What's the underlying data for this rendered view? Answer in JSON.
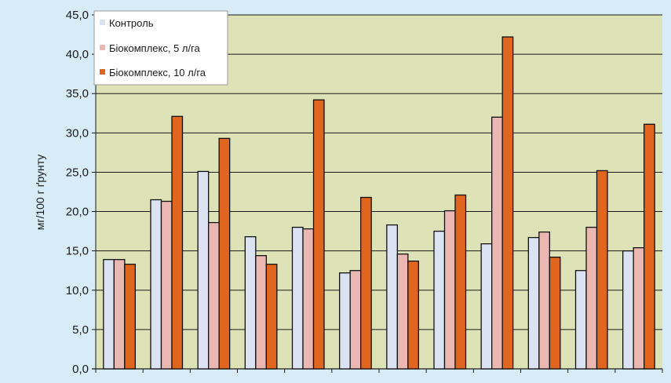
{
  "chart_data": {
    "type": "bar",
    "title": "",
    "xlabel": "",
    "ylabel": "мг/100 г ґрунту",
    "ylim": [
      0,
      45
    ],
    "yticks": [
      "0,0",
      "5,0",
      "10,0",
      "15,0",
      "20,0",
      "25,0",
      "30,0",
      "35,0",
      "40,0",
      "45,0"
    ],
    "grid": true,
    "legend_position": "top-left",
    "categories": [
      "",
      "",
      "",
      "",
      "",
      "",
      "",
      "",
      "",
      "",
      "",
      ""
    ],
    "series": [
      {
        "name": "Контроль",
        "color": "#dbe3f2",
        "values": [
          13.9,
          21.5,
          25.1,
          16.8,
          18.0,
          12.2,
          18.3,
          17.5,
          15.9,
          16.7,
          12.5,
          15.0
        ]
      },
      {
        "name": "Біокомплекс, 5 л/га",
        "color": "#eab7b3",
        "values": [
          13.9,
          21.3,
          18.6,
          14.4,
          17.8,
          12.5,
          14.6,
          20.1,
          32.0,
          17.4,
          18.0,
          15.4
        ]
      },
      {
        "name": "Біокомплекс, 10 л/га",
        "color": "#e0651e",
        "values": [
          13.3,
          32.1,
          29.3,
          13.3,
          34.2,
          21.8,
          13.7,
          22.1,
          42.2,
          14.2,
          25.2,
          31.1
        ]
      }
    ],
    "colors": {
      "plot_bg": "#dde3b6",
      "page_bg": "#d7ecf7",
      "grid": "#1a1a1a",
      "bar_stroke": "#111111"
    }
  }
}
